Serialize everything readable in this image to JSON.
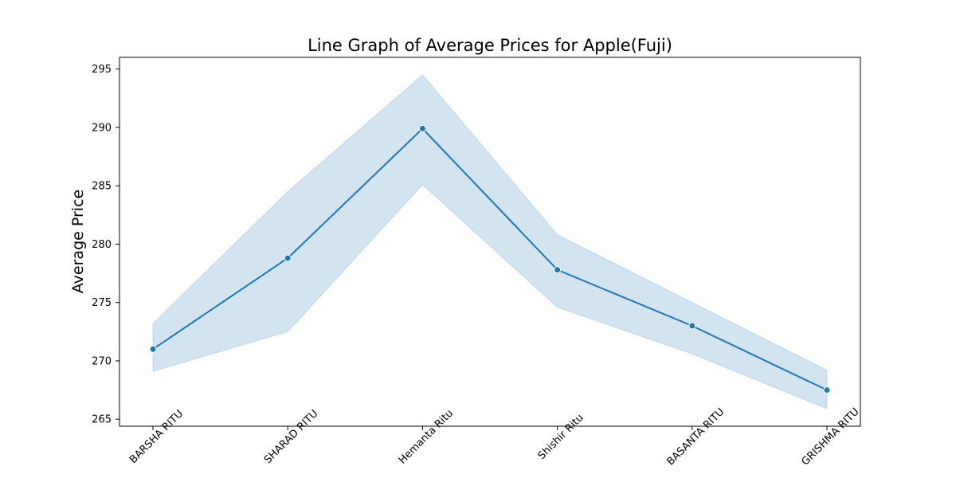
{
  "chart_data": {
    "type": "line",
    "title": "Line Graph of Average Prices for Apple(Fuji)",
    "xlabel": "",
    "ylabel": "Average Price",
    "categories": [
      "BARSHA RITU",
      "SHARAD RITU",
      "Hemanta Ritu",
      "Shishir Ritu",
      "BASANTA RITU",
      "GRISHMA RITU"
    ],
    "series": [
      {
        "name": "Average Price",
        "values": [
          271.0,
          278.8,
          289.9,
          277.8,
          273.0,
          267.5
        ],
        "ci_lower": [
          269.1,
          272.5,
          285.1,
          274.6,
          270.6,
          265.9
        ],
        "ci_upper": [
          273.2,
          284.5,
          294.5,
          280.8,
          275.0,
          269.2
        ]
      }
    ],
    "ylim": [
      264.4,
      296.0
    ],
    "yticks": [
      265,
      270,
      275,
      280,
      285,
      290,
      295
    ],
    "grid": false,
    "legend": "none",
    "colors": {
      "line": "#1f77b4",
      "band": "#1f77b4",
      "axes": "#000000",
      "background": "#ffffff"
    }
  }
}
